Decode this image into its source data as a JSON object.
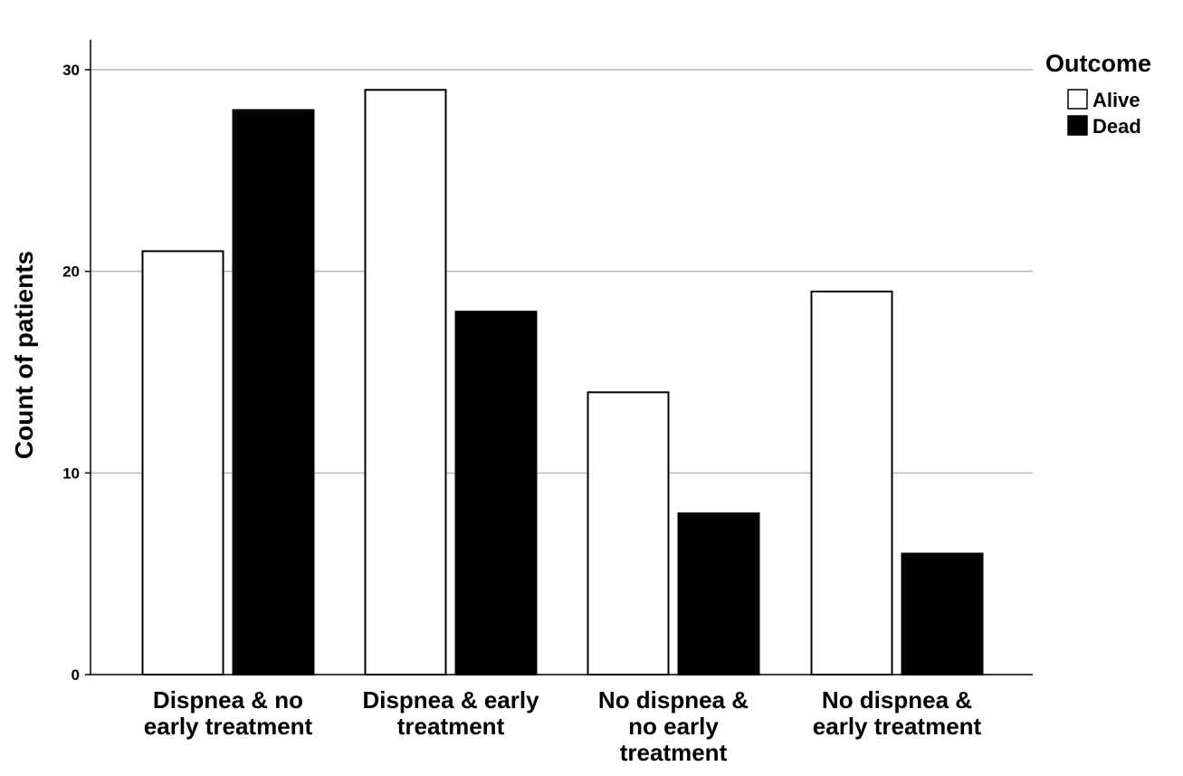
{
  "chart_data": {
    "type": "bar",
    "categories": [
      [
        "Dispnea & no",
        "early treatment"
      ],
      [
        "Dispnea & early",
        "treatment"
      ],
      [
        "No dispnea &",
        "no early",
        "treatment"
      ],
      [
        "No dispnea &",
        "early treatment"
      ]
    ],
    "series": [
      {
        "name": "Alive",
        "color": "#ffffff",
        "values": [
          21,
          29,
          14,
          19
        ]
      },
      {
        "name": "Dead",
        "color": "#000000",
        "values": [
          28,
          18,
          8,
          6
        ]
      }
    ],
    "xlabel": "",
    "ylabel": "Count of patients",
    "ylim": [
      0,
      30
    ],
    "yticks": [
      0,
      10,
      20,
      30
    ],
    "grid": true,
    "legend": {
      "title": "Outcome",
      "position": "top-right"
    }
  }
}
